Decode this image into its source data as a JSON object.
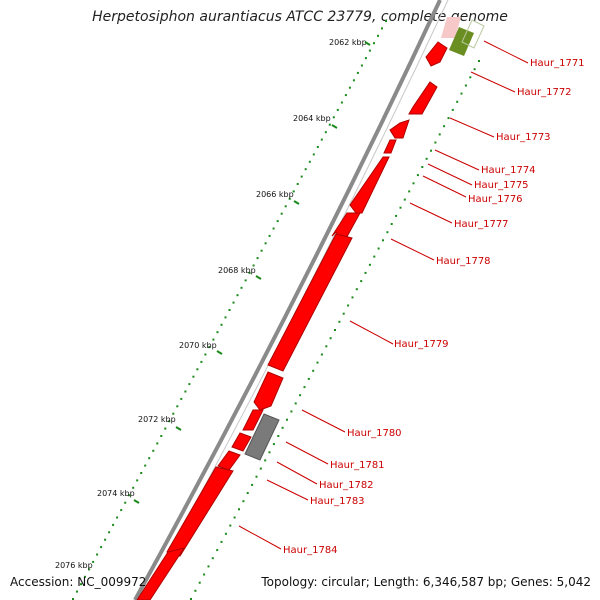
{
  "title": "Herpetosiphon aurantiacus ATCC 23779, complete genome",
  "footer": {
    "accession": "Accession: NC_009972",
    "summary": "Topology: circular; Length: 6,346,587 bp; Genes: 5,042"
  },
  "colors": {
    "cds": "#ff0000",
    "cds_dark": "#b00000",
    "gray_feature": "#808080",
    "highlight_green": "#6b8e23",
    "backbone": "#888888",
    "dots": "#1a8a1a",
    "label": "#cc0000"
  },
  "kbp_ticks": [
    "2062 kbp",
    "2064 kbp",
    "2066 kbp",
    "2068 kbp",
    "2070 kbp",
    "2072 kbp",
    "2074 kbp",
    "2076 kbp"
  ],
  "genes": [
    "Haur_1771",
    "Haur_1772",
    "Haur_1773",
    "Haur_1774",
    "Haur_1775",
    "Haur_1776",
    "Haur_1777",
    "Haur_1778",
    "Haur_1779",
    "Haur_1780",
    "Haur_1781",
    "Haur_1782",
    "Haur_1783",
    "Haur_1784"
  ]
}
